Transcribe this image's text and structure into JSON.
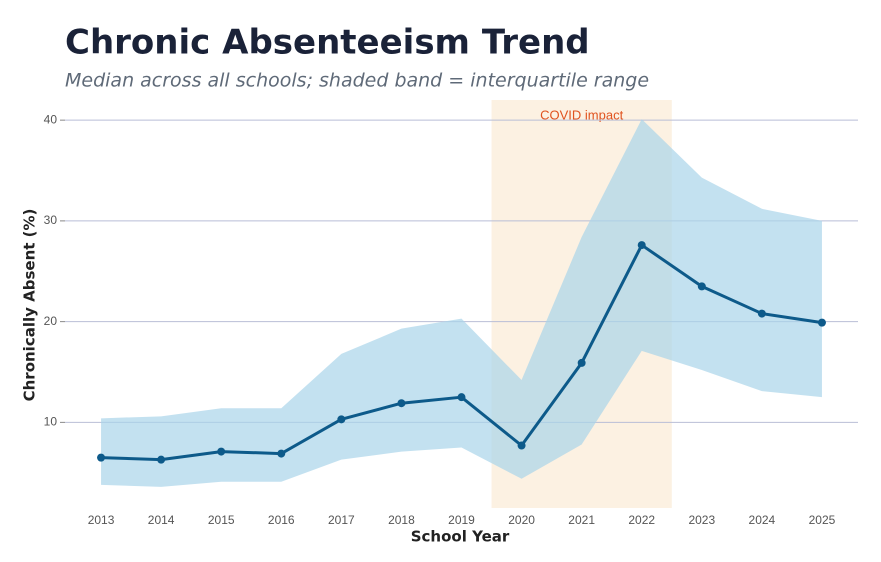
{
  "chart_data": {
    "type": "line",
    "title": "Chronic Absenteeism Trend",
    "subtitle": "Median across all schools; shaded band = interquartile range",
    "x_label": "School Year",
    "y_label": "Chronically Absent (%)",
    "x": [
      2013,
      2014,
      2015,
      2016,
      2017,
      2018,
      2019,
      2020,
      2021,
      2022,
      2023,
      2024,
      2025
    ],
    "xlim": [
      2012.4,
      2025.6
    ],
    "xticks": [
      2013,
      2014,
      2015,
      2016,
      2017,
      2018,
      2019,
      2020,
      2021,
      2022,
      2023,
      2024,
      2025
    ],
    "ylim": [
      1.5,
      42
    ],
    "yticks": [
      10,
      20,
      30,
      40
    ],
    "grid": true,
    "series": [
      {
        "name": "Median",
        "color": "#0d5a8a",
        "values": [
          6.5,
          6.3,
          7.1,
          6.9,
          10.3,
          11.9,
          12.5,
          7.7,
          15.9,
          27.6,
          23.5,
          20.8,
          19.9
        ]
      }
    ],
    "band": {
      "color": "#a9d4ea",
      "upper": [
        10.4,
        10.6,
        11.4,
        11.4,
        16.8,
        19.3,
        20.3,
        14.2,
        28.4,
        40.1,
        34.3,
        31.2,
        30.0
      ],
      "lower": [
        3.8,
        3.6,
        4.1,
        4.1,
        6.3,
        7.1,
        7.5,
        4.4,
        7.8,
        17.1,
        15.2,
        13.1,
        12.5
      ]
    },
    "highlight": {
      "label": "COVID impact",
      "range": [
        2019.5,
        2022.5
      ],
      "color": "#fcf1e2",
      "label_color": "#e0531f"
    }
  }
}
